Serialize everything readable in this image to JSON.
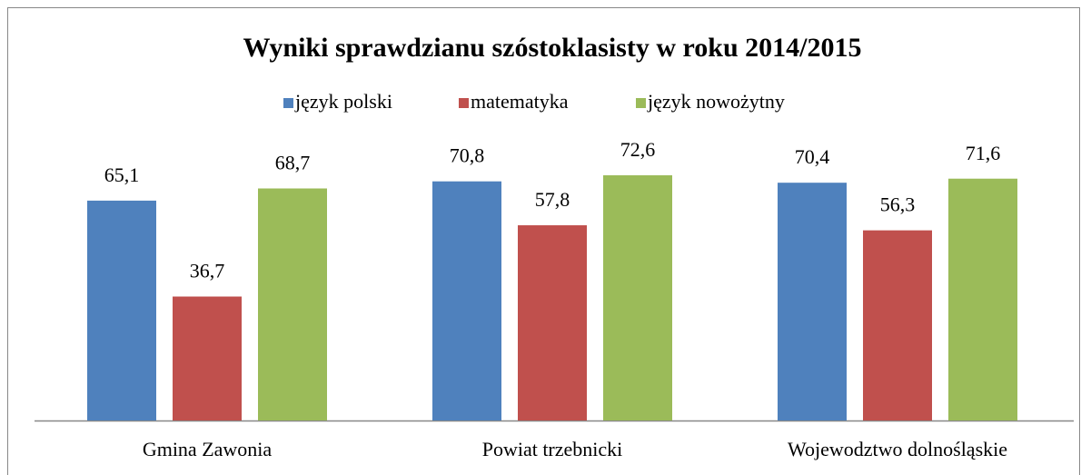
{
  "chart_data": {
    "type": "bar",
    "title": "Wyniki sprawdzianu szóstoklasisty w roku 2014/2015",
    "categories": [
      "Gmina Zawonia",
      "Powiat trzebnicki",
      "Wojewodztwo dolnośląskie"
    ],
    "series": [
      {
        "name": "język polski",
        "color": "#4f81bd",
        "values": [
          65.1,
          70.8,
          70.4
        ],
        "value_labels": [
          "65,1",
          "70,8",
          "70,4"
        ]
      },
      {
        "name": "matematyka",
        "color": "#c0504d",
        "values": [
          36.7,
          57.8,
          56.3
        ],
        "value_labels": [
          "36,7",
          "57,8",
          "56,3"
        ]
      },
      {
        "name": "język nowożytny",
        "color": "#9bbb59",
        "values": [
          68.7,
          72.6,
          71.6
        ],
        "value_labels": [
          "68,7",
          "72,6",
          "71,6"
        ]
      }
    ],
    "legend": "top"
  }
}
